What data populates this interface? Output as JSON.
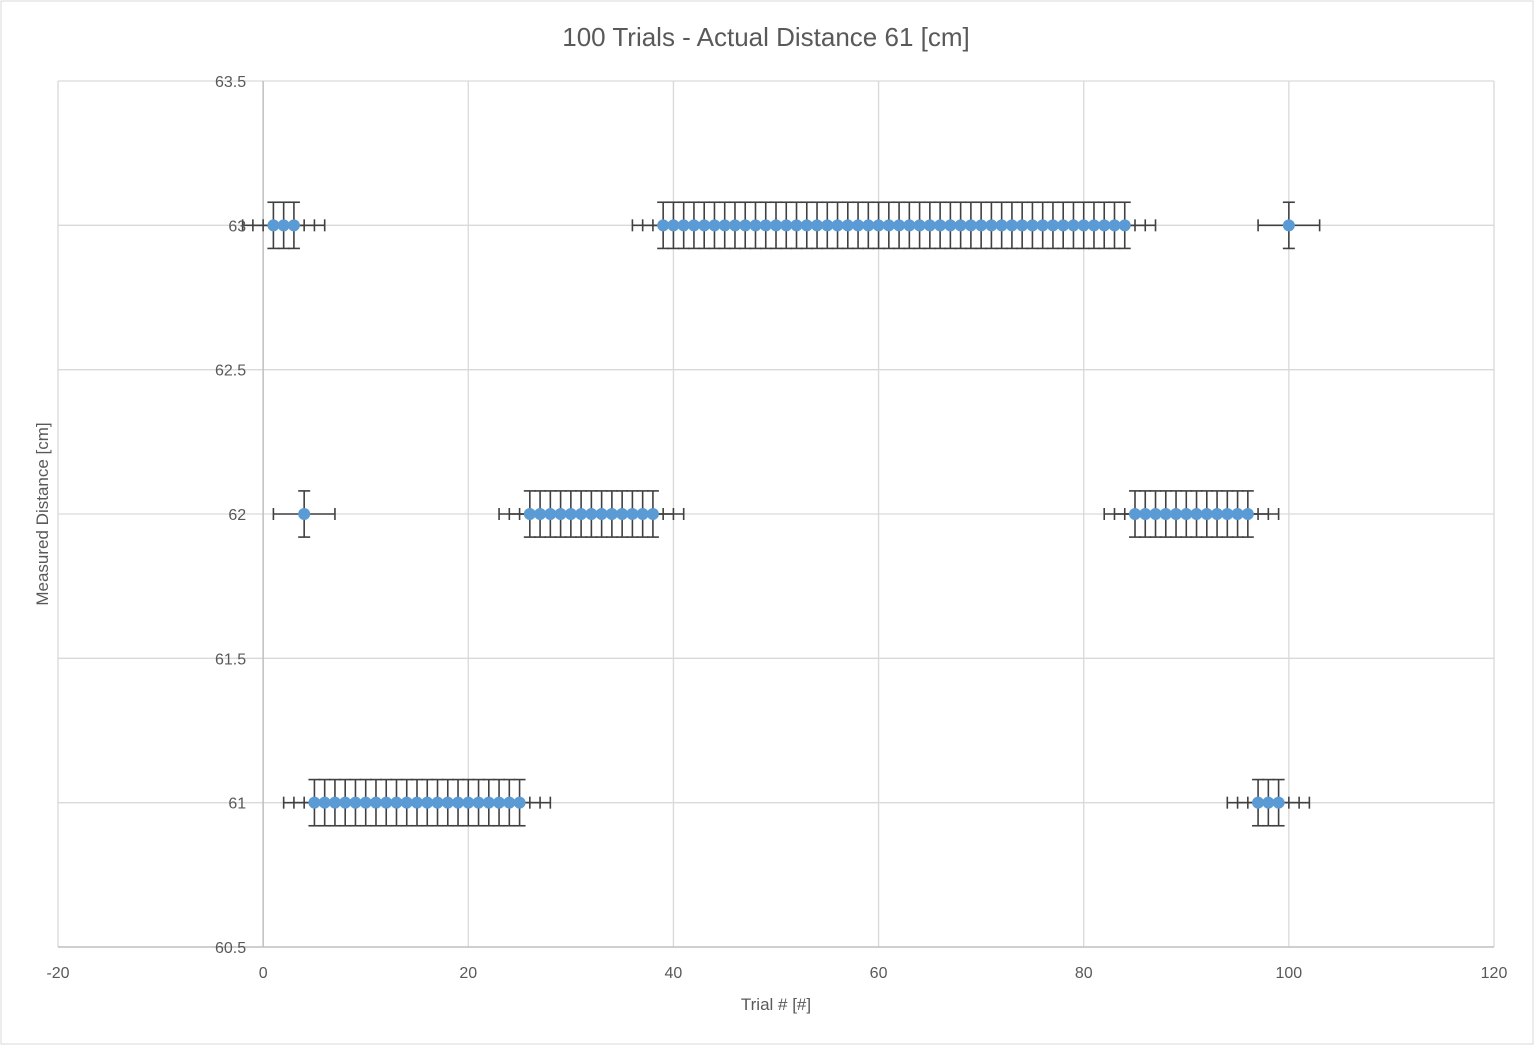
{
  "chart_data": {
    "type": "scatter",
    "title": "100 Trials - Actual Distance 61 [cm]",
    "xlabel": "Trial # [#]",
    "ylabel": "Measured Distance [cm]",
    "xlim": [
      -20,
      120
    ],
    "ylim": [
      60.5,
      63.5
    ],
    "xticks": [
      "-20",
      "0",
      "20",
      "40",
      "60",
      "80",
      "100",
      "120"
    ],
    "yticks": [
      "60.5",
      "61",
      "61.5",
      "62",
      "62.5",
      "63",
      "63.5"
    ],
    "grid": true,
    "legend": "none",
    "error_bars": {
      "x": 3,
      "y": 0.08
    },
    "colors": {
      "marker": "#5B9BD5",
      "error_bar": "#404040",
      "grid": "#D9D9D9",
      "text": "#595959"
    },
    "series": [
      {
        "points": [
          [
            1,
            63
          ],
          [
            2,
            63
          ],
          [
            3,
            63
          ],
          [
            4,
            62
          ],
          [
            5,
            61
          ],
          [
            6,
            61
          ],
          [
            7,
            61
          ],
          [
            8,
            61
          ],
          [
            9,
            61
          ],
          [
            10,
            61
          ],
          [
            11,
            61
          ],
          [
            12,
            61
          ],
          [
            13,
            61
          ],
          [
            14,
            61
          ],
          [
            15,
            61
          ],
          [
            16,
            61
          ],
          [
            17,
            61
          ],
          [
            18,
            61
          ],
          [
            19,
            61
          ],
          [
            20,
            61
          ],
          [
            21,
            61
          ],
          [
            22,
            61
          ],
          [
            23,
            61
          ],
          [
            24,
            61
          ],
          [
            25,
            61
          ],
          [
            26,
            62
          ],
          [
            27,
            62
          ],
          [
            28,
            62
          ],
          [
            29,
            62
          ],
          [
            30,
            62
          ],
          [
            31,
            62
          ],
          [
            32,
            62
          ],
          [
            33,
            62
          ],
          [
            34,
            62
          ],
          [
            35,
            62
          ],
          [
            36,
            62
          ],
          [
            37,
            62
          ],
          [
            38,
            62
          ],
          [
            39,
            63
          ],
          [
            40,
            63
          ],
          [
            41,
            63
          ],
          [
            42,
            63
          ],
          [
            43,
            63
          ],
          [
            44,
            63
          ],
          [
            45,
            63
          ],
          [
            46,
            63
          ],
          [
            47,
            63
          ],
          [
            48,
            63
          ],
          [
            49,
            63
          ],
          [
            50,
            63
          ],
          [
            51,
            63
          ],
          [
            52,
            63
          ],
          [
            53,
            63
          ],
          [
            54,
            63
          ],
          [
            55,
            63
          ],
          [
            56,
            63
          ],
          [
            57,
            63
          ],
          [
            58,
            63
          ],
          [
            59,
            63
          ],
          [
            60,
            63
          ],
          [
            61,
            63
          ],
          [
            62,
            63
          ],
          [
            63,
            63
          ],
          [
            64,
            63
          ],
          [
            65,
            63
          ],
          [
            66,
            63
          ],
          [
            67,
            63
          ],
          [
            68,
            63
          ],
          [
            69,
            63
          ],
          [
            70,
            63
          ],
          [
            71,
            63
          ],
          [
            72,
            63
          ],
          [
            73,
            63
          ],
          [
            74,
            63
          ],
          [
            75,
            63
          ],
          [
            76,
            63
          ],
          [
            77,
            63
          ],
          [
            78,
            63
          ],
          [
            79,
            63
          ],
          [
            80,
            63
          ],
          [
            81,
            63
          ],
          [
            82,
            63
          ],
          [
            83,
            63
          ],
          [
            84,
            63
          ],
          [
            85,
            62
          ],
          [
            86,
            62
          ],
          [
            87,
            62
          ],
          [
            88,
            62
          ],
          [
            89,
            62
          ],
          [
            90,
            62
          ],
          [
            91,
            62
          ],
          [
            92,
            62
          ],
          [
            93,
            62
          ],
          [
            94,
            62
          ],
          [
            95,
            62
          ],
          [
            96,
            62
          ],
          [
            97,
            61
          ],
          [
            98,
            61
          ],
          [
            99,
            61
          ],
          [
            100,
            63
          ]
        ]
      }
    ]
  }
}
